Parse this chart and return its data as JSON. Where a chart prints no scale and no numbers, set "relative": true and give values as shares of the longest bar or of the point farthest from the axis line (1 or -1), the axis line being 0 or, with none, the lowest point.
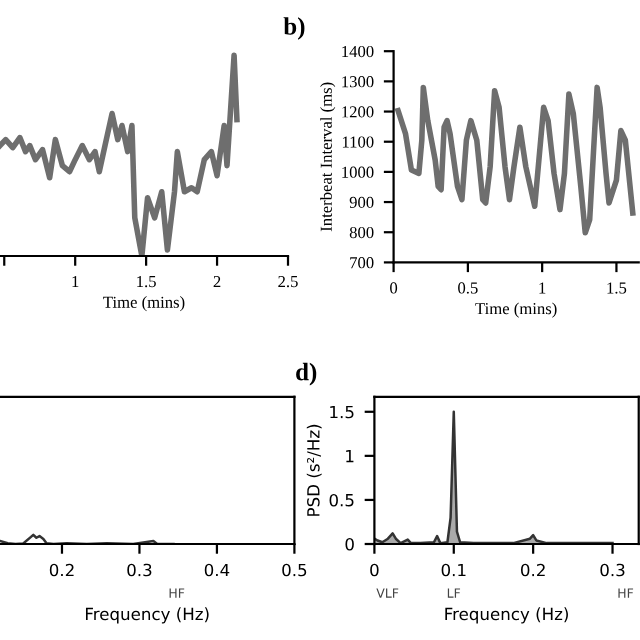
{
  "chart_data": [
    {
      "type": "line",
      "relative": true,
      "xlabel": "Time (mins)",
      "xlim": [
        0.47,
        2.5
      ],
      "xticks": [
        {
          "value": 0.5,
          "label": null
        },
        1,
        1.5,
        2,
        2.5
      ],
      "grid": false,
      "series": [
        {
          "color": "#6e6e6e",
          "x": [
            0.47,
            0.51,
            0.56,
            0.61,
            0.65,
            0.68,
            0.72,
            0.77,
            0.82,
            0.86,
            0.91,
            0.96,
            1.0,
            1.05,
            1.1,
            1.14,
            1.17,
            1.21,
            1.26,
            1.3,
            1.33,
            1.37,
            1.4,
            1.42,
            1.47,
            1.51,
            1.56,
            1.61,
            1.65,
            1.7,
            1.72,
            1.77,
            1.82,
            1.86,
            1.91,
            1.96,
            2.0,
            2.05,
            2.07,
            2.12,
            2.14
          ],
          "values": [
            0.55,
            0.58,
            0.54,
            0.59,
            0.52,
            0.55,
            0.48,
            0.53,
            0.39,
            0.58,
            0.45,
            0.42,
            0.48,
            0.55,
            0.48,
            0.52,
            0.42,
            0.55,
            0.71,
            0.58,
            0.65,
            0.52,
            0.65,
            0.19,
            0,
            0.29,
            0.19,
            0.32,
            0.03,
            0.32,
            0.52,
            0.32,
            0.34,
            0.32,
            0.48,
            0.52,
            0.4,
            0.65,
            0.45,
            1,
            0.68
          ]
        }
      ]
    },
    {
      "type": "line",
      "title": "b)",
      "xlabel": "Time (mins)",
      "ylabel": "Interbeat Interval (ms)",
      "xlim": [
        0,
        1.65
      ],
      "xticks": [
        0,
        0.5,
        1,
        1.5
      ],
      "ylim": [
        700,
        1400
      ],
      "yticks": [
        700,
        800,
        900,
        1000,
        1100,
        1200,
        1300,
        1400
      ],
      "grid": false,
      "series": [
        {
          "color": "#6e6e6e",
          "x": [
            0.03,
            0.08,
            0.12,
            0.17,
            0.19,
            0.2,
            0.23,
            0.28,
            0.3,
            0.32,
            0.34,
            0.36,
            0.38,
            0.43,
            0.46,
            0.49,
            0.52,
            0.56,
            0.6,
            0.62,
            0.65,
            0.68,
            0.71,
            0.75,
            0.78,
            0.81,
            0.85,
            0.89,
            0.95,
            1.01,
            1.04,
            1.08,
            1.12,
            1.15,
            1.18,
            1.21,
            1.26,
            1.29,
            1.32,
            1.37,
            1.39,
            1.43,
            1.45,
            1.5,
            1.53,
            1.56,
            1.61
          ],
          "values": [
            1203,
            1127,
            1006,
            995,
            1105,
            1280,
            1170,
            1039,
            952,
            941,
            1148,
            1170,
            1127,
            952,
            908,
            1105,
            1170,
            1105,
            908,
            897,
            1017,
            1269,
            1214,
            1017,
            908,
            1017,
            1148,
            1017,
            886,
            1214,
            1170,
            995,
            875,
            995,
            1258,
            1192,
            952,
            798,
            842,
            1280,
            1214,
            995,
            897,
            973,
            1137,
            1105,
            864
          ]
        }
      ]
    },
    {
      "type": "line",
      "relative": true,
      "xlabel": "Frequency (Hz)",
      "xlim": [
        0.12,
        0.5
      ],
      "xticks": [
        0.2,
        0.3,
        0.4,
        0.5
      ],
      "annotations": [
        "HF"
      ],
      "grid": false,
      "series": [
        {
          "color": "#333333",
          "x": [
            0.12,
            0.13,
            0.14,
            0.15,
            0.16,
            0.163,
            0.167,
            0.171,
            0.176,
            0.18,
            0.189,
            0.206,
            0.232,
            0.258,
            0.292,
            0.318,
            0.323,
            0.344
          ],
          "values": [
            0.32,
            0.09,
            0,
            0.05,
            0.77,
            1,
            0.68,
            0.86,
            0.55,
            0.09,
            0,
            0.09,
            0,
            0.09,
            0,
            0.32,
            0,
            0
          ]
        }
      ]
    },
    {
      "type": "area",
      "title": "d)",
      "xlabel": "Frequency (Hz)",
      "ylabel": "PSD (s²/Hz)",
      "xlim": [
        0,
        0.333
      ],
      "xticks": [
        0,
        0.1,
        0.2,
        0.3
      ],
      "ylim": [
        0,
        1.67
      ],
      "yticks": [
        0,
        0.5,
        1,
        1.5
      ],
      "annotations": [
        "VLF",
        "LF",
        "HF"
      ],
      "grid": false,
      "series": [
        {
          "color": "#333333",
          "x": [
            0,
            0.004,
            0.01,
            0.017,
            0.023,
            0.027,
            0.033,
            0.042,
            0.046,
            0.058,
            0.075,
            0.079,
            0.083,
            0.092,
            0.096,
            0.1,
            0.104,
            0.108,
            0.125,
            0.15,
            0.175,
            0.196,
            0.2,
            0.204,
            0.217,
            0.233,
            0.267,
            0.3
          ],
          "values": [
            0.06,
            0.04,
            0.02,
            0.06,
            0.12,
            0.06,
            0.01,
            0.05,
            0.01,
            0.01,
            0.02,
            0.09,
            0.01,
            0.02,
            0.3,
            1.5,
            0.14,
            0.02,
            0.01,
            0.01,
            0.01,
            0.06,
            0.1,
            0.04,
            0.01,
            0.01,
            0.01,
            0.01
          ]
        }
      ]
    }
  ]
}
